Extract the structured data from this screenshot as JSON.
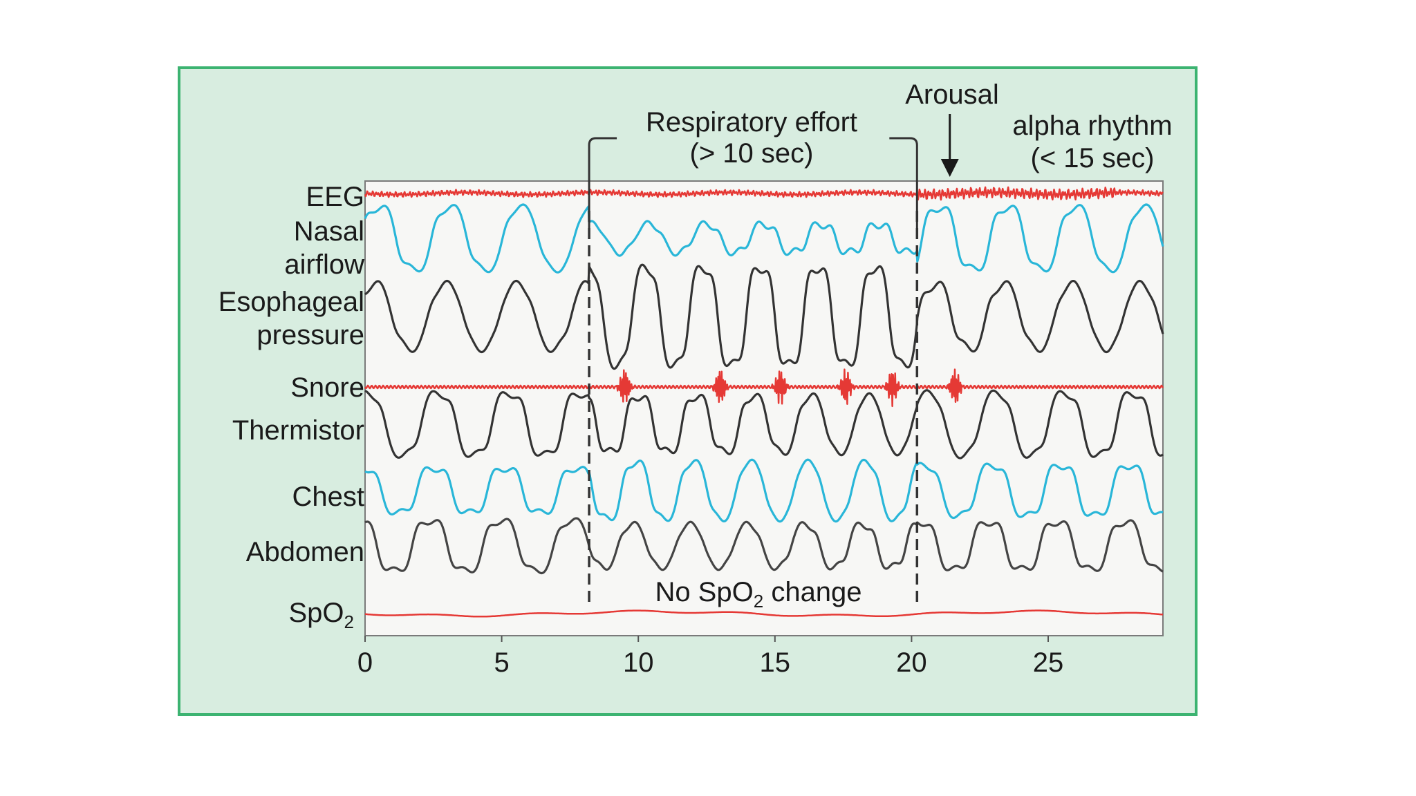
{
  "chart_data": {
    "type": "line",
    "title": "",
    "xlabel": "",
    "ylabel": "",
    "xlim": [
      0,
      29.2
    ],
    "x_ticks": [
      "0",
      "5",
      "10",
      "15",
      "20",
      "25"
    ],
    "x_tick_values": [
      0,
      5,
      10,
      15,
      20,
      25
    ],
    "grid": false,
    "legend": "none",
    "series": [
      {
        "key": "eeg",
        "label": "EEG",
        "color": "#e53935",
        "kind": "eeg"
      },
      {
        "key": "nasal",
        "label_lines": [
          "Nasal",
          "airflow"
        ],
        "color": "#29b6d8",
        "kind": "resp",
        "amplitude_by_segment": [
          1.0,
          0.45,
          1.0
        ]
      },
      {
        "key": "esophageal",
        "label_lines": [
          "Esophageal",
          "pressure"
        ],
        "color": "#333333",
        "kind": "resp",
        "amplitude_by_segment": [
          0.8,
          1.25,
          0.8
        ]
      },
      {
        "key": "snore",
        "label": "Snore",
        "color": "#e53935",
        "kind": "snore",
        "bursts_sec": [
          9.5,
          13.0,
          15.2,
          17.6,
          19.3,
          21.6
        ]
      },
      {
        "key": "thermistor",
        "label": "Thermistor",
        "color": "#333333",
        "kind": "resp",
        "amplitude_by_segment": [
          1.0,
          0.9,
          1.0
        ]
      },
      {
        "key": "chest",
        "label": "Chest",
        "color": "#29b6d8",
        "kind": "resp",
        "amplitude_by_segment": [
          0.8,
          1.0,
          0.9
        ]
      },
      {
        "key": "abdomen",
        "label": "Abdomen",
        "color": "#444444",
        "kind": "resp",
        "amplitude_by_segment": [
          0.9,
          0.75,
          0.85
        ]
      },
      {
        "key": "spo2",
        "label_main": "SpO",
        "label_sub": "2",
        "color": "#e53935",
        "kind": "flat"
      }
    ],
    "event_markers_sec": [
      8.2,
      20.2
    ],
    "annotations": {
      "effort_line1": "Respiratory effort",
      "effort_line2": "(> 10 sec)",
      "arousal": "Arousal",
      "arousal_sec": 21.4,
      "alpha_line1": "alpha rhythm",
      "alpha_line2": "(< 15 sec)",
      "spo2_note_main": "No SpO",
      "spo2_note_sub": "2",
      "spo2_note_rest": " change"
    },
    "colors": {
      "panel_background": "#d8ede0",
      "panel_border": "#3cb371",
      "plot_background": "#f7f7f5",
      "plot_border": "#7a7a7a"
    }
  }
}
